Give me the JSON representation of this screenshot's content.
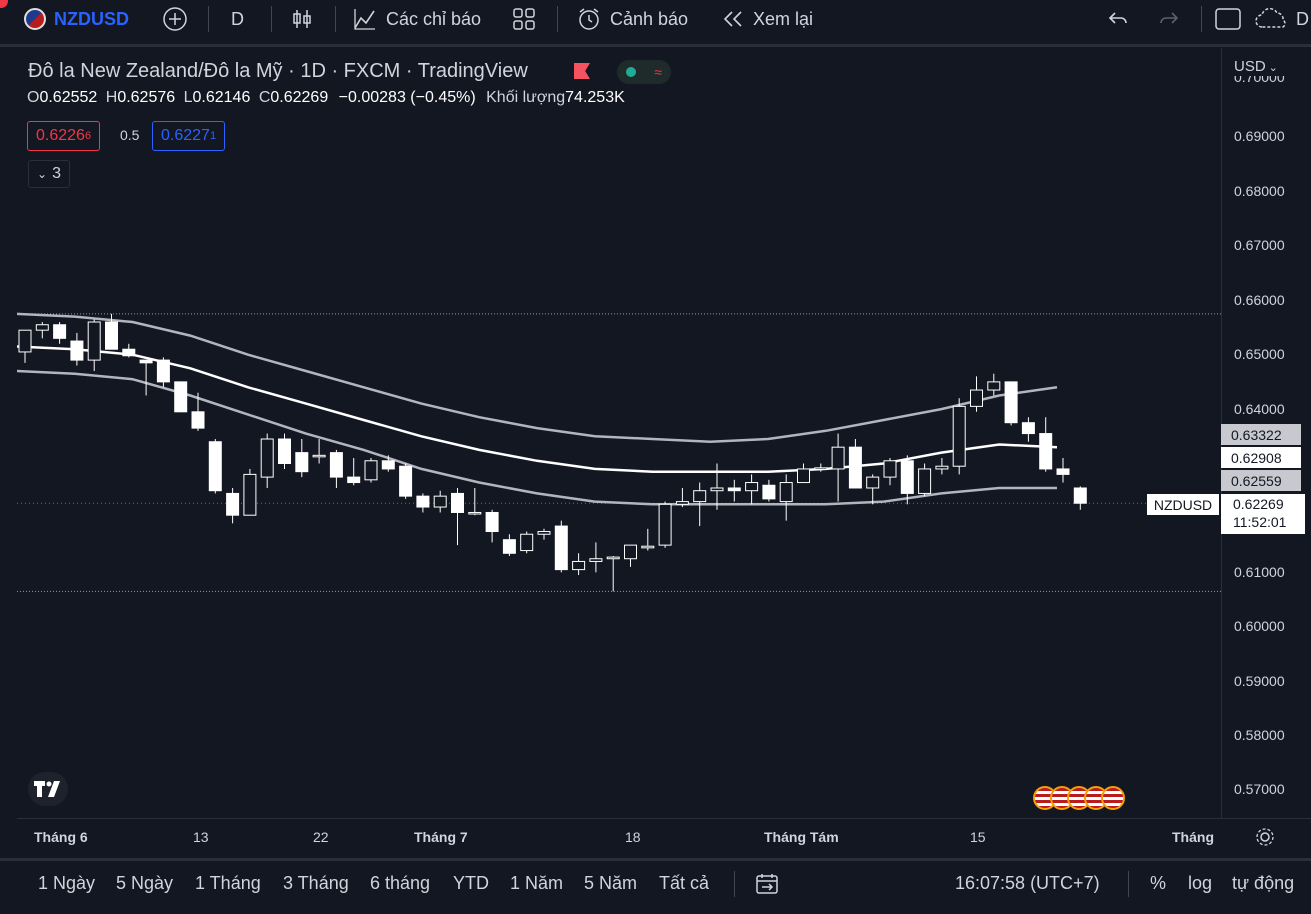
{
  "toolbar": {
    "symbol": "NZDUSD",
    "interval": "D",
    "indicators_label": "Các chỉ báo",
    "alerts_label": "Cảnh báo",
    "replay_label": "Xem lại",
    "partial_label": "D"
  },
  "legend": {
    "title": "Đô la New Zealand/Đô la Mỹ · 1D · FXCM · TradingView",
    "o_key": "O",
    "o": "0.62552",
    "h_key": "H",
    "h": "0.62576",
    "l_key": "L",
    "l": "0.62146",
    "c_key": "C",
    "c": "0.62269",
    "change": "−0.00283 (−0.45%)",
    "volume_label": "Khối lượng",
    "volume": "74.253K",
    "sell_price": "0.6226",
    "sell_sup": "6",
    "spread": "0.5",
    "buy_price": "0.6227",
    "buy_sup": "1",
    "collapsed_count": "3"
  },
  "price_axis": {
    "currency": "USD",
    "labels": [
      "0.69000",
      "0.68000",
      "0.67000",
      "0.66000",
      "0.65000",
      "0.64000",
      "0.61000",
      "0.60000",
      "0.59000",
      "0.58000",
      "0.57000"
    ],
    "top_partial": "0.70000",
    "tags": [
      {
        "value": "0.63322",
        "kind": "upper"
      },
      {
        "value": "0.62908",
        "kind": "mid"
      },
      {
        "value": "0.62559",
        "kind": "lower"
      }
    ],
    "last_symbol": "NZDUSD",
    "last_price": "0.62269",
    "countdown": "11:52:01"
  },
  "time_axis": {
    "labels": [
      "Tháng 6",
      "13",
      "22",
      "Tháng 7",
      "18",
      "Tháng Tám",
      "15",
      "Tháng"
    ]
  },
  "bottom_bar": {
    "ranges": [
      "1 Ngày",
      "5 Ngày",
      "1 Tháng",
      "3 Tháng",
      "6 tháng",
      "YTD",
      "1 Năm",
      "5 Năm",
      "Tất cả"
    ],
    "clock": "16:07:58 (UTC+7)",
    "percent": "%",
    "log": "log",
    "auto": "tự động"
  },
  "colors": {
    "background": "#131722",
    "candle": "#ffffff",
    "accent": "#2962ff",
    "sell": "#f23645",
    "grid": "#2a2e39"
  },
  "chart_data": {
    "type": "candlestick",
    "symbol": "NZDUSD",
    "ylim": [
      0.565,
      0.7
    ],
    "candles": [
      {
        "o": 0.6505,
        "h": 0.6545,
        "l": 0.6485,
        "c": 0.6545
      },
      {
        "o": 0.6545,
        "h": 0.656,
        "l": 0.653,
        "c": 0.6555
      },
      {
        "o": 0.6555,
        "h": 0.656,
        "l": 0.652,
        "c": 0.653
      },
      {
        "o": 0.6525,
        "h": 0.654,
        "l": 0.648,
        "c": 0.649
      },
      {
        "o": 0.649,
        "h": 0.6565,
        "l": 0.647,
        "c": 0.656
      },
      {
        "o": 0.656,
        "h": 0.6575,
        "l": 0.651,
        "c": 0.651
      },
      {
        "o": 0.651,
        "h": 0.652,
        "l": 0.6495,
        "c": 0.6498
      },
      {
        "o": 0.649,
        "h": 0.649,
        "l": 0.6425,
        "c": 0.6485
      },
      {
        "o": 0.649,
        "h": 0.6495,
        "l": 0.644,
        "c": 0.645
      },
      {
        "o": 0.645,
        "h": 0.645,
        "l": 0.6395,
        "c": 0.6395
      },
      {
        "o": 0.6395,
        "h": 0.643,
        "l": 0.636,
        "c": 0.6365
      },
      {
        "o": 0.634,
        "h": 0.6345,
        "l": 0.6245,
        "c": 0.625
      },
      {
        "o": 0.6245,
        "h": 0.6255,
        "l": 0.619,
        "c": 0.6205
      },
      {
        "o": 0.6205,
        "h": 0.629,
        "l": 0.6205,
        "c": 0.628
      },
      {
        "o": 0.6275,
        "h": 0.6355,
        "l": 0.6255,
        "c": 0.6345
      },
      {
        "o": 0.6345,
        "h": 0.6355,
        "l": 0.629,
        "c": 0.63
      },
      {
        "o": 0.632,
        "h": 0.6345,
        "l": 0.6275,
        "c": 0.6285
      },
      {
        "o": 0.6315,
        "h": 0.6345,
        "l": 0.63,
        "c": 0.6315
      },
      {
        "o": 0.632,
        "h": 0.6325,
        "l": 0.6255,
        "c": 0.6275
      },
      {
        "o": 0.6275,
        "h": 0.631,
        "l": 0.626,
        "c": 0.6265
      },
      {
        "o": 0.627,
        "h": 0.631,
        "l": 0.6265,
        "c": 0.6305
      },
      {
        "o": 0.6305,
        "h": 0.6315,
        "l": 0.6285,
        "c": 0.629
      },
      {
        "o": 0.6295,
        "h": 0.63,
        "l": 0.6235,
        "c": 0.624
      },
      {
        "o": 0.624,
        "h": 0.6245,
        "l": 0.621,
        "c": 0.622
      },
      {
        "o": 0.622,
        "h": 0.625,
        "l": 0.621,
        "c": 0.624
      },
      {
        "o": 0.6245,
        "h": 0.6255,
        "l": 0.615,
        "c": 0.621
      },
      {
        "o": 0.621,
        "h": 0.6255,
        "l": 0.6205,
        "c": 0.621
      },
      {
        "o": 0.621,
        "h": 0.6215,
        "l": 0.6155,
        "c": 0.6175
      },
      {
        "o": 0.616,
        "h": 0.617,
        "l": 0.613,
        "c": 0.6135
      },
      {
        "o": 0.614,
        "h": 0.6175,
        "l": 0.6135,
        "c": 0.617
      },
      {
        "o": 0.617,
        "h": 0.618,
        "l": 0.616,
        "c": 0.6175
      },
      {
        "o": 0.6185,
        "h": 0.6195,
        "l": 0.61,
        "c": 0.6105
      },
      {
        "o": 0.6105,
        "h": 0.6135,
        "l": 0.6095,
        "c": 0.612
      },
      {
        "o": 0.612,
        "h": 0.6155,
        "l": 0.61,
        "c": 0.6125
      },
      {
        "o": 0.6125,
        "h": 0.613,
        "l": 0.6065,
        "c": 0.6128
      },
      {
        "o": 0.6125,
        "h": 0.615,
        "l": 0.611,
        "c": 0.615
      },
      {
        "o": 0.6145,
        "h": 0.618,
        "l": 0.614,
        "c": 0.6148
      },
      {
        "o": 0.615,
        "h": 0.623,
        "l": 0.6145,
        "c": 0.6225
      },
      {
        "o": 0.6225,
        "h": 0.6255,
        "l": 0.622,
        "c": 0.623
      },
      {
        "o": 0.623,
        "h": 0.6265,
        "l": 0.6185,
        "c": 0.625
      },
      {
        "o": 0.625,
        "h": 0.63,
        "l": 0.6215,
        "c": 0.6255
      },
      {
        "o": 0.6255,
        "h": 0.627,
        "l": 0.623,
        "c": 0.625
      },
      {
        "o": 0.625,
        "h": 0.628,
        "l": 0.6225,
        "c": 0.6265
      },
      {
        "o": 0.626,
        "h": 0.627,
        "l": 0.623,
        "c": 0.6235
      },
      {
        "o": 0.623,
        "h": 0.628,
        "l": 0.6195,
        "c": 0.6265
      },
      {
        "o": 0.6265,
        "h": 0.63,
        "l": 0.6265,
        "c": 0.629
      },
      {
        "o": 0.629,
        "h": 0.63,
        "l": 0.6285,
        "c": 0.6292
      },
      {
        "o": 0.629,
        "h": 0.6355,
        "l": 0.623,
        "c": 0.633
      },
      {
        "o": 0.633,
        "h": 0.6345,
        "l": 0.6255,
        "c": 0.6255
      },
      {
        "o": 0.6255,
        "h": 0.628,
        "l": 0.6225,
        "c": 0.6275
      },
      {
        "o": 0.6275,
        "h": 0.631,
        "l": 0.626,
        "c": 0.6305
      },
      {
        "o": 0.6305,
        "h": 0.6315,
        "l": 0.6225,
        "c": 0.6245
      },
      {
        "o": 0.6245,
        "h": 0.63,
        "l": 0.624,
        "c": 0.629
      },
      {
        "o": 0.629,
        "h": 0.631,
        "l": 0.628,
        "c": 0.6295
      },
      {
        "o": 0.6295,
        "h": 0.642,
        "l": 0.628,
        "c": 0.6405
      },
      {
        "o": 0.6405,
        "h": 0.646,
        "l": 0.6395,
        "c": 0.6435
      },
      {
        "o": 0.6435,
        "h": 0.6465,
        "l": 0.6425,
        "c": 0.645
      },
      {
        "o": 0.645,
        "h": 0.645,
        "l": 0.637,
        "c": 0.6375
      },
      {
        "o": 0.6375,
        "h": 0.6385,
        "l": 0.634,
        "c": 0.6355
      },
      {
        "o": 0.6355,
        "h": 0.6385,
        "l": 0.6285,
        "c": 0.629
      },
      {
        "o": 0.629,
        "h": 0.631,
        "l": 0.6265,
        "c": 0.628
      },
      {
        "o": 0.6255,
        "h": 0.6258,
        "l": 0.6215,
        "c": 0.6227
      }
    ],
    "bands": {
      "upper": [
        0.6575,
        0.657,
        0.656,
        0.6535,
        0.65,
        0.647,
        0.644,
        0.641,
        0.6385,
        0.6365,
        0.635,
        0.6345,
        0.634,
        0.6345,
        0.636,
        0.638,
        0.64,
        0.6425,
        0.644
      ],
      "middle": [
        0.6515,
        0.651,
        0.65,
        0.6475,
        0.644,
        0.641,
        0.638,
        0.635,
        0.6325,
        0.6305,
        0.629,
        0.6285,
        0.6285,
        0.6285,
        0.629,
        0.63,
        0.632,
        0.6335,
        0.633
      ],
      "lower": [
        0.647,
        0.6465,
        0.6455,
        0.6425,
        0.639,
        0.6355,
        0.6325,
        0.629,
        0.6265,
        0.6245,
        0.623,
        0.6225,
        0.6225,
        0.6225,
        0.6225,
        0.623,
        0.6245,
        0.6255,
        0.6255
      ]
    },
    "horizontal_levels": [
      0.6575,
      0.6065
    ],
    "price_ticks": [
      0.7,
      0.69,
      0.68,
      0.67,
      0.66,
      0.65,
      0.64,
      0.61,
      0.6,
      0.59,
      0.58,
      0.57
    ],
    "time_ticks": [
      "Tháng 6",
      "13",
      "22",
      "Tháng 7",
      "18",
      "Tháng Tám",
      "15",
      "Tháng"
    ]
  }
}
